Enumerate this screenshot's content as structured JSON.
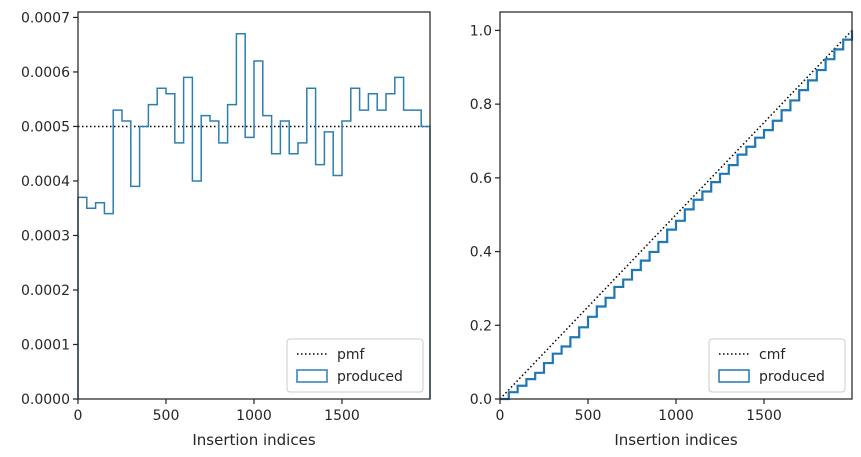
{
  "chart_data": [
    {
      "type": "histogram-step",
      "xlabel": "Insertion indices",
      "ylabel": "",
      "xlim": [
        0,
        2000
      ],
      "ylim": [
        0,
        0.00071
      ],
      "x_ticks": [
        0,
        500,
        1000,
        1500
      ],
      "x_tick_labels": [
        "0",
        "500",
        "1000",
        "1500"
      ],
      "y_ticks": [
        0,
        0.0001,
        0.0002,
        0.0003,
        0.0004,
        0.0005,
        0.0006,
        0.0007
      ],
      "y_tick_labels": [
        "0.0000",
        "0.0001",
        "0.0002",
        "0.0003",
        "0.0004",
        "0.0005",
        "0.0006",
        "0.0007"
      ],
      "grid": false,
      "legend_position": "lower-right",
      "series": [
        {
          "name": "pmf",
          "kind": "reference-line",
          "style": "dotted",
          "color": "#000000",
          "value": 0.0005
        },
        {
          "name": "produced",
          "kind": "step",
          "color": "#2f7fae",
          "bin_edges": [
            0,
            50,
            100,
            150,
            200,
            250,
            300,
            350,
            400,
            450,
            500,
            550,
            600,
            650,
            700,
            750,
            800,
            850,
            900,
            950,
            1000,
            1050,
            1100,
            1150,
            1200,
            1250,
            1300,
            1350,
            1400,
            1450,
            1500,
            1550,
            1600,
            1650,
            1700,
            1750,
            1800,
            1850,
            1900,
            1950,
            2000
          ],
          "values": [
            0.00037,
            0.00035,
            0.00036,
            0.00034,
            0.00053,
            0.00051,
            0.00039,
            0.0005,
            0.00054,
            0.00057,
            0.00056,
            0.00047,
            0.00059,
            0.0004,
            0.00052,
            0.00051,
            0.00047,
            0.00054,
            0.00067,
            0.00048,
            0.00062,
            0.00052,
            0.00045,
            0.00051,
            0.00045,
            0.00047,
            0.00057,
            0.00043,
            0.00049,
            0.00041,
            0.00051,
            0.00057,
            0.00053,
            0.00056,
            0.00053,
            0.00056,
            0.00059,
            0.00053,
            0.00053,
            0.0005
          ]
        }
      ]
    },
    {
      "type": "cumulative-step",
      "xlabel": "Insertion indices",
      "ylabel": "",
      "xlim": [
        0,
        2000
      ],
      "ylim": [
        0,
        1.05
      ],
      "x_ticks": [
        0,
        500,
        1000,
        1500
      ],
      "x_tick_labels": [
        "0",
        "500",
        "1000",
        "1500"
      ],
      "y_ticks": [
        0,
        0.2,
        0.4,
        0.6,
        0.8,
        1.0
      ],
      "y_tick_labels": [
        "0.0",
        "0.2",
        "0.4",
        "0.6",
        "0.8",
        "1.0"
      ],
      "grid": false,
      "legend_position": "lower-right",
      "series": [
        {
          "name": "cmf",
          "kind": "line",
          "style": "dotted",
          "color": "#000000",
          "x": [
            0,
            2000
          ],
          "y": [
            0,
            1.0
          ]
        },
        {
          "name": "produced",
          "kind": "step",
          "color": "#1f77b4",
          "x": [
            0,
            50,
            100,
            150,
            200,
            250,
            300,
            350,
            400,
            450,
            500,
            550,
            600,
            650,
            700,
            750,
            800,
            850,
            900,
            950,
            1000,
            1050,
            1100,
            1150,
            1200,
            1250,
            1300,
            1350,
            1400,
            1450,
            1500,
            1550,
            1600,
            1650,
            1700,
            1750,
            1800,
            1850,
            1900,
            1950,
            2000
          ],
          "y": [
            0,
            0.0185,
            0.036,
            0.054,
            0.071,
            0.0975,
            0.123,
            0.1425,
            0.1675,
            0.1945,
            0.223,
            0.251,
            0.2745,
            0.304,
            0.324,
            0.35,
            0.3755,
            0.399,
            0.426,
            0.4595,
            0.4835,
            0.5145,
            0.5405,
            0.563,
            0.5885,
            0.611,
            0.6345,
            0.663,
            0.6845,
            0.709,
            0.7295,
            0.755,
            0.7835,
            0.81,
            0.838,
            0.8645,
            0.8925,
            0.922,
            0.9485,
            0.975,
            1.0
          ]
        }
      ]
    }
  ]
}
